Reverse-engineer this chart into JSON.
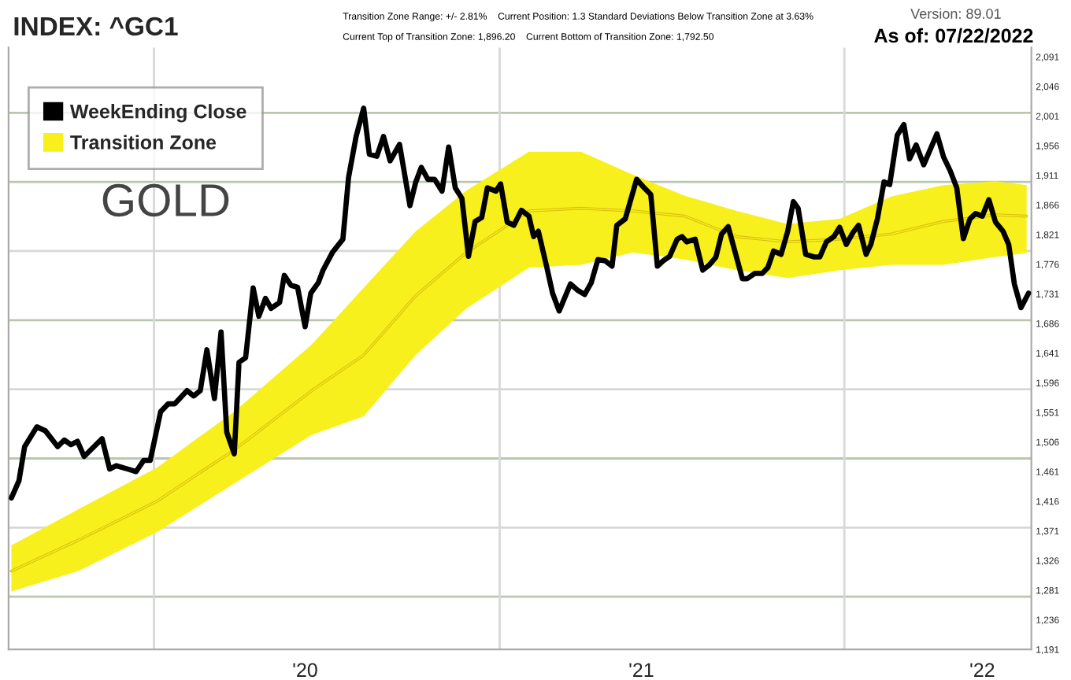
{
  "chart_data": {
    "type": "line",
    "title": "INDEX: ^GC1",
    "annotations": [
      "Transition Zone Range: +/- 2.81%    Current Position: 1.3 Standard Deviations Below Transition Zone at 3.63%",
      "Current Top of Transition Zone: 1,896.20    Current Bottom of Transition Zone: 1,792.50",
      "Version: 89.01",
      "As of: 07/22/2022",
      "GOLD"
    ],
    "series": [
      {
        "name": "WeekEnding Close",
        "color": "#000000",
        "x": [
          "2019-08-03",
          "2019-08-11",
          "2019-08-17",
          "2019-08-30",
          "2019-09-08",
          "2019-09-21",
          "2019-09-28",
          "2019-10-05",
          "2019-10-12",
          "2019-10-19",
          "2019-11-07",
          "2019-11-15",
          "2019-11-22",
          "2019-12-04",
          "2019-12-13",
          "2019-12-21",
          "2019-12-28",
          "2020-01-08",
          "2020-01-16",
          "2020-01-23",
          "2020-02-05",
          "2020-02-12",
          "2020-02-19",
          "2020-02-26",
          "2020-03-05",
          "2020-03-12",
          "2020-03-18",
          "2020-03-26",
          "2020-03-31",
          "2020-04-07",
          "2020-04-15",
          "2020-04-21",
          "2020-04-28",
          "2020-05-04",
          "2020-05-13",
          "2020-05-18",
          "2020-05-25",
          "2020-06-01",
          "2020-06-09",
          "2020-06-15",
          "2020-06-23",
          "2020-06-28",
          "2020-07-08",
          "2020-07-19",
          "2020-07-25",
          "2020-08-02",
          "2020-08-10",
          "2020-08-16",
          "2020-08-24",
          "2020-08-31",
          "2020-09-07",
          "2020-09-17",
          "2020-09-28",
          "2020-10-04",
          "2020-10-10",
          "2020-10-17",
          "2020-10-24",
          "2020-11-01",
          "2020-11-08",
          "2020-11-15",
          "2020-11-22",
          "2020-11-29",
          "2020-12-06",
          "2020-12-13",
          "2020-12-19",
          "2020-12-28",
          "2021-01-02",
          "2021-01-09",
          "2021-01-16",
          "2021-01-24",
          "2021-02-01",
          "2021-02-06",
          "2021-02-11",
          "2021-02-20",
          "2021-02-26",
          "2021-03-05",
          "2021-03-17",
          "2021-03-25",
          "2021-04-01",
          "2021-04-08",
          "2021-04-15",
          "2021-04-23",
          "2021-04-30",
          "2021-05-05",
          "2021-05-14",
          "2021-05-26",
          "2021-06-03",
          "2021-06-10",
          "2021-06-17",
          "2021-06-23",
          "2021-06-30",
          "2021-07-08",
          "2021-07-13",
          "2021-07-18",
          "2021-07-27",
          "2021-08-04",
          "2021-08-11",
          "2021-08-18",
          "2021-08-24",
          "2021-08-31",
          "2021-09-15",
          "2021-09-20",
          "2021-09-28",
          "2021-10-06",
          "2021-10-12",
          "2021-10-18",
          "2021-10-26",
          "2021-11-02",
          "2021-11-08",
          "2021-11-13",
          "2021-11-21",
          "2021-11-30",
          "2021-12-06",
          "2021-12-13",
          "2021-12-21",
          "2021-12-27",
          "2022-01-03",
          "2022-01-10",
          "2022-01-16",
          "2022-01-24",
          "2022-01-29",
          "2022-02-05",
          "2022-02-12",
          "2022-02-18",
          "2022-02-26",
          "2022-03-05",
          "2022-03-11",
          "2022-03-18",
          "2022-03-26",
          "2022-04-09",
          "2022-04-16",
          "2022-04-23",
          "2022-04-30",
          "2022-05-07",
          "2022-05-14",
          "2022-05-20",
          "2022-05-27",
          "2022-06-03",
          "2022-06-10",
          "2022-06-18",
          "2022-06-24",
          "2022-06-30",
          "2022-07-07",
          "2022-07-15"
        ],
        "values": [
          1421,
          1447,
          1499,
          1529,
          1523,
          1499,
          1509,
          1502,
          1507,
          1484,
          1511,
          1465,
          1470,
          1465,
          1461,
          1478,
          1478,
          1552,
          1564,
          1564,
          1584,
          1576,
          1584,
          1646,
          1572,
          1673,
          1521,
          1488,
          1627,
          1634,
          1740,
          1697,
          1724,
          1709,
          1718,
          1759,
          1744,
          1741,
          1681,
          1732,
          1748,
          1767,
          1794,
          1814,
          1908,
          1970,
          2013,
          1943,
          1940,
          1970,
          1933,
          1958,
          1865,
          1900,
          1923,
          1905,
          1905,
          1887,
          1954,
          1892,
          1876,
          1788,
          1841,
          1847,
          1892,
          1887,
          1898,
          1840,
          1835,
          1858,
          1849,
          1818,
          1826,
          1771,
          1732,
          1705,
          1746,
          1736,
          1730,
          1748,
          1783,
          1781,
          1773,
          1835,
          1845,
          1905,
          1892,
          1882,
          1773,
          1781,
          1788,
          1814,
          1818,
          1810,
          1814,
          1767,
          1775,
          1787,
          1822,
          1833,
          1754,
          1754,
          1762,
          1762,
          1771,
          1796,
          1791,
          1826,
          1871,
          1861,
          1791,
          1787,
          1787,
          1810,
          1818,
          1832,
          1806,
          1824,
          1835,
          1791,
          1806,
          1845,
          1901,
          1897,
          1972,
          1988,
          1936,
          1957,
          1927,
          1974,
          1939,
          1918,
          1892,
          1815,
          1845,
          1853,
          1849,
          1874,
          1840,
          1826,
          1806,
          1746,
          1710,
          1732
        ]
      },
      {
        "name": "Transition Zone",
        "color": "#f7f01c",
        "x": [
          "2019-08-03",
          "2019-10-13",
          "2020-01-04",
          "2020-03-26",
          "2020-06-16",
          "2020-08-10",
          "2020-10-04",
          "2020-11-27",
          "2021-02-01",
          "2021-03-28",
          "2021-05-22",
          "2021-07-16",
          "2021-09-09",
          "2021-11-02",
          "2021-12-27",
          "2022-02-20",
          "2022-04-16",
          "2022-06-10",
          "2022-07-13"
        ],
        "values": [
          1310,
          1357,
          1416,
          1494,
          1584,
          1638,
          1728,
          1794,
          1857,
          1861,
          1857,
          1849,
          1818,
          1810,
          1814,
          1822,
          1841,
          1851,
          1849
        ],
        "upper": [
          1349,
          1404,
          1467,
          1552,
          1654,
          1740,
          1826,
          1888,
          1947,
          1947,
          1912,
          1880,
          1857,
          1837,
          1845,
          1879,
          1896,
          1902,
          1896
        ],
        "lower": [
          1279,
          1310,
          1369,
          1443,
          1517,
          1545,
          1638,
          1709,
          1771,
          1775,
          1794,
          1783,
          1767,
          1755,
          1767,
          1775,
          1775,
          1787,
          1793
        ]
      }
    ],
    "xlim": [
      "2019-07-31",
      "2022-07-18"
    ],
    "xticks": [
      {
        "value": "2020-01-01",
        "label": null
      },
      {
        "value": "2020-06-09",
        "label": "'20"
      },
      {
        "value": "2021-01-01",
        "label": null
      },
      {
        "value": "2021-05-31",
        "label": "'21"
      },
      {
        "value": "2022-01-01",
        "label": null
      },
      {
        "value": "2022-05-27",
        "label": "'22"
      }
    ],
    "ylim": [
      1191,
      2105
    ],
    "yticks": [
      {
        "value": 1191,
        "label": "1,191"
      },
      {
        "value": 1236,
        "label": "1,236"
      },
      {
        "value": 1281,
        "label": "1,281"
      },
      {
        "value": 1326,
        "label": "1,326"
      },
      {
        "value": 1371,
        "label": "1,371"
      },
      {
        "value": 1416,
        "label": "1,416"
      },
      {
        "value": 1461,
        "label": "1,461"
      },
      {
        "value": 1506,
        "label": "1,506"
      },
      {
        "value": 1551,
        "label": "1,551"
      },
      {
        "value": 1596,
        "label": "1,596"
      },
      {
        "value": 1641,
        "label": "1,641"
      },
      {
        "value": 1686,
        "label": "1,686"
      },
      {
        "value": 1731,
        "label": "1,731"
      },
      {
        "value": 1776,
        "label": "1,776"
      },
      {
        "value": 1821,
        "label": "1,821"
      },
      {
        "value": 1866,
        "label": "1,866"
      },
      {
        "value": 1911,
        "label": "1,911"
      },
      {
        "value": 1956,
        "label": "1,956"
      },
      {
        "value": 2001,
        "label": "2,001"
      },
      {
        "value": 2046,
        "label": "2,046"
      },
      {
        "value": 2091,
        "label": "2,091"
      }
    ],
    "ref_lines": [
      {
        "axis": "y",
        "value": 2006,
        "color": "#b8c8b0"
      },
      {
        "axis": "y",
        "value": 1901,
        "color": "#b8c8b0"
      },
      {
        "axis": "y",
        "value": 1796,
        "color": "#d8d8d8"
      },
      {
        "axis": "y",
        "value": 1691,
        "color": "#b8c8b0"
      },
      {
        "axis": "y",
        "value": 1586,
        "color": "#d8d8d8"
      },
      {
        "axis": "y",
        "value": 1481,
        "color": "#b8c8b0"
      },
      {
        "axis": "y",
        "value": 1376,
        "color": "#d8d8d8"
      },
      {
        "axis": "y",
        "value": 1271,
        "color": "#b8c8b0"
      },
      {
        "axis": "x",
        "value": "2020-01-01",
        "color": "#d8d8d8"
      },
      {
        "axis": "x",
        "value": "2021-01-01",
        "color": "#d8d8d8"
      },
      {
        "axis": "x",
        "value": "2022-01-01",
        "color": "#d8d8d8"
      }
    ],
    "legend": "top left",
    "grid": false,
    "marker": "none",
    "line_style": "solid"
  }
}
